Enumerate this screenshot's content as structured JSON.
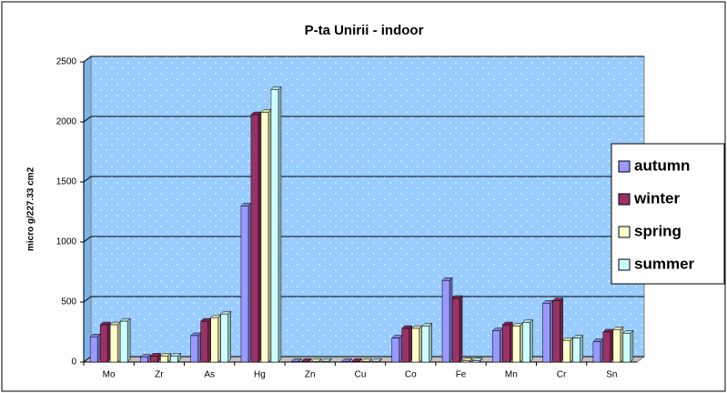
{
  "chart_data": {
    "type": "bar",
    "title": "P-ta Unirii - indoor",
    "y_label": "micro g/227.33 cm2",
    "categories": [
      "Mo",
      "Zr",
      "As",
      "Hg",
      "Zn",
      "Cu",
      "Co",
      "Fe",
      "Mn",
      "Cr",
      "Sn"
    ],
    "series": [
      {
        "name": "autumn",
        "color": "#9999ff",
        "values": [
          210,
          40,
          220,
          1300,
          5,
          5,
          200,
          680,
          260,
          490,
          170
        ]
      },
      {
        "name": "winter",
        "color": "#993366",
        "values": [
          310,
          50,
          340,
          2060,
          5,
          5,
          280,
          530,
          310,
          510,
          250
        ]
      },
      {
        "name": "spring",
        "color": "#ffffcc",
        "values": [
          310,
          50,
          370,
          2080,
          5,
          5,
          280,
          10,
          300,
          180,
          270
        ]
      },
      {
        "name": "summer",
        "color": "#ccffff",
        "values": [
          340,
          50,
          400,
          2270,
          5,
          5,
          300,
          10,
          330,
          200,
          240
        ]
      }
    ],
    "ylim": [
      0,
      2500
    ],
    "yticks": [
      0,
      500,
      1000,
      1500,
      2000,
      2500
    ],
    "grid": true,
    "legend": "right"
  }
}
